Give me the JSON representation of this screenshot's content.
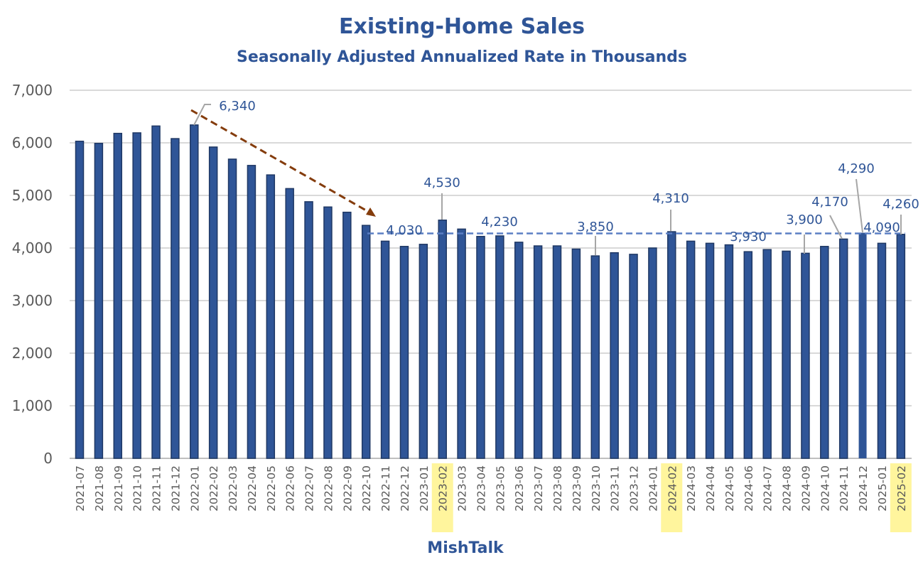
{
  "chart_data": {
    "type": "bar",
    "title": "Existing-Home Sales",
    "subtitle": "Seasonally Adjusted Annualized Rate in Thousands",
    "xlabel": "",
    "ylabel": "",
    "source_label": "MishTalk",
    "ylim": [
      0,
      7000
    ],
    "yticks": [
      "0",
      "1,000",
      "2,000",
      "3,000",
      "4,000",
      "5,000",
      "6,000",
      "7,000"
    ],
    "grid": true,
    "bar_color": "#2f5597",
    "highlight_color": "#fff59d",
    "highlighted_categories": [
      "2023-02",
      "2024-02",
      "2025-02"
    ],
    "reference_line": {
      "value": 4290,
      "from": "2022-11",
      "to": "2025-02",
      "color": "#5b7fc4",
      "style": "dashed"
    },
    "trend_arrow": {
      "from": "2022-01",
      "to": "2022-10",
      "color": "#843c0c",
      "style": "dashed"
    },
    "categories": [
      "2021-07",
      "2021-08",
      "2021-09",
      "2021-10",
      "2021-11",
      "2021-12",
      "2022-01",
      "2022-02",
      "2022-03",
      "2022-04",
      "2022-05",
      "2022-06",
      "2022-07",
      "2022-08",
      "2022-09",
      "2022-10",
      "2022-11",
      "2022-12",
      "2023-01",
      "2023-02",
      "2023-03",
      "2023-04",
      "2023-05",
      "2023-06",
      "2023-07",
      "2023-08",
      "2023-09",
      "2023-10",
      "2023-11",
      "2023-12",
      "2024-01",
      "2024-02",
      "2024-03",
      "2024-04",
      "2024-05",
      "2024-06",
      "2024-07",
      "2024-08",
      "2024-09",
      "2024-10",
      "2024-11",
      "2024-12",
      "2025-01",
      "2025-02"
    ],
    "values": [
      6030,
      5990,
      6180,
      6190,
      6320,
      6080,
      6340,
      5920,
      5690,
      5570,
      5390,
      5130,
      4880,
      4780,
      4680,
      4430,
      4130,
      4030,
      4070,
      4530,
      4360,
      4220,
      4230,
      4110,
      4040,
      4040,
      3980,
      3850,
      3910,
      3880,
      4000,
      4310,
      4130,
      4090,
      4060,
      3930,
      3970,
      3940,
      3900,
      4030,
      4170,
      4290,
      4090,
      4260
    ],
    "data_labels": [
      {
        "category": "2022-01",
        "text": "6,340"
      },
      {
        "category": "2022-12",
        "text": "4,030"
      },
      {
        "category": "2023-02",
        "text": "4,530"
      },
      {
        "category": "2023-05",
        "text": "4,230"
      },
      {
        "category": "2023-10",
        "text": "3,850"
      },
      {
        "category": "2024-02",
        "text": "4,310"
      },
      {
        "category": "2024-06",
        "text": "3,930"
      },
      {
        "category": "2024-09",
        "text": "3,900"
      },
      {
        "category": "2024-11",
        "text": "4,170"
      },
      {
        "category": "2024-12",
        "text": "4,290"
      },
      {
        "category": "2025-01",
        "text": "4,090"
      },
      {
        "category": "2025-02",
        "text": "4,260"
      }
    ]
  }
}
